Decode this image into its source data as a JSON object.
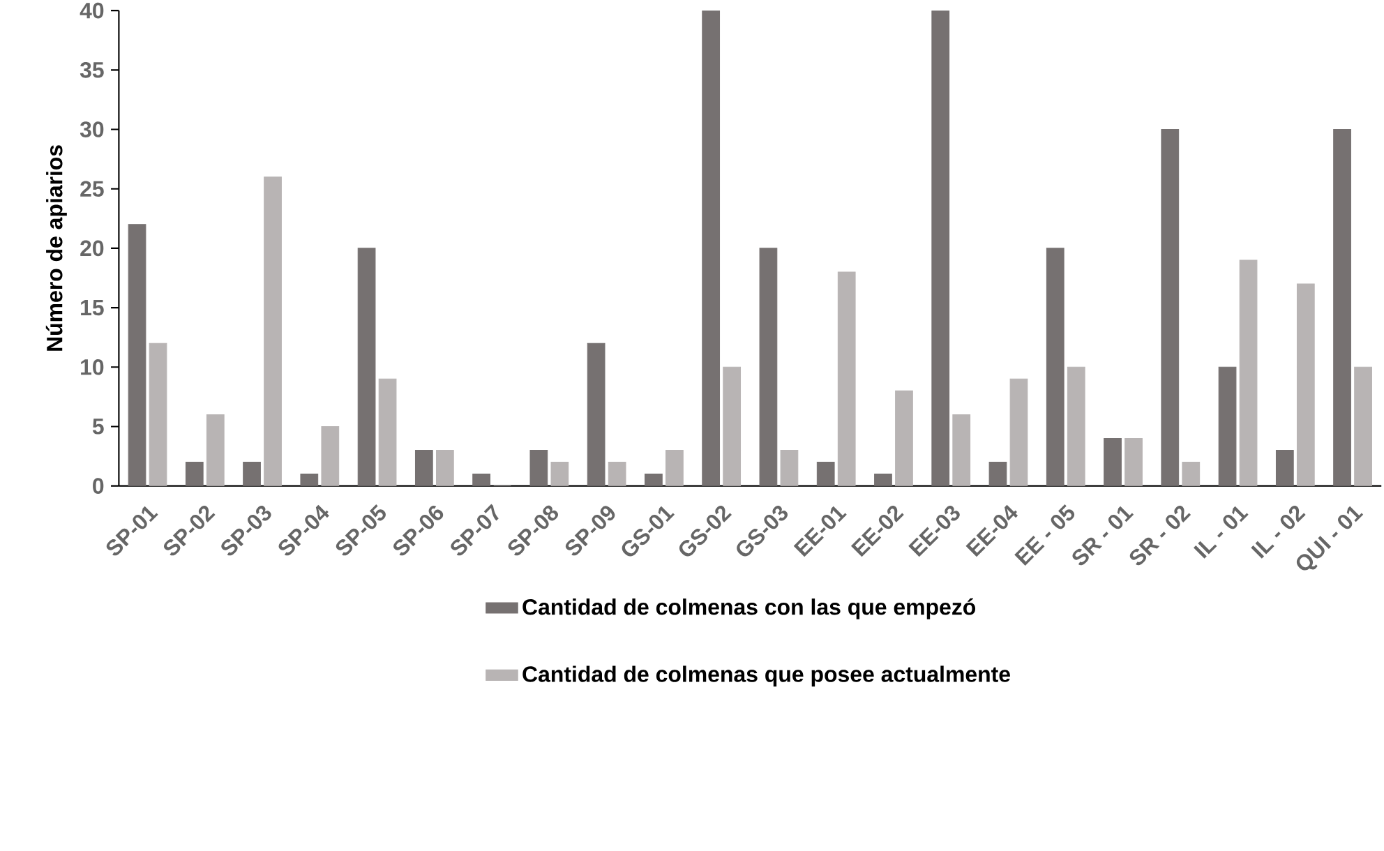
{
  "chart_data": {
    "type": "bar",
    "ylabel": "Número de apiarios",
    "categories": [
      "SP-01",
      "SP-02",
      "SP-03",
      "SP-04",
      "SP-05",
      "SP-06",
      "SP-07",
      "SP-08",
      "SP-09",
      "GS-01",
      "GS-02",
      "GS-03",
      "EE-01",
      "EE-02",
      "EE-03",
      "EE-04",
      "EE - 05",
      "SR - 01",
      "SR - 02",
      "IL - 01",
      "IL - 02",
      "QUI - 01"
    ],
    "series": [
      {
        "name": "Cantidad de colmenas con las que empezó",
        "color": "#767171",
        "values": [
          22,
          2,
          2,
          1,
          20,
          3,
          1,
          3,
          12,
          1,
          40,
          20,
          2,
          1,
          40,
          2,
          20,
          4,
          30,
          10,
          3,
          30
        ]
      },
      {
        "name": "Cantidad de colmenas que posee actualmente",
        "color": "#b8b4b4",
        "values": [
          12,
          6,
          26,
          5,
          9,
          3,
          0,
          2,
          2,
          3,
          10,
          3,
          18,
          8,
          6,
          9,
          10,
          4,
          2,
          19,
          17,
          10
        ]
      }
    ],
    "ylim": [
      0,
      40
    ],
    "yticks": [
      0,
      5,
      10,
      15,
      20,
      25,
      30,
      35,
      40
    ],
    "grid": false,
    "legend": "bottom"
  }
}
